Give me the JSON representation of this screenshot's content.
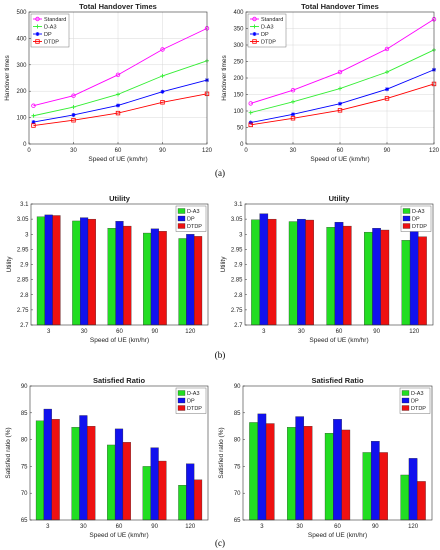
{
  "captions": [
    "(a)",
    "(b)",
    "(c)"
  ],
  "chart_data": [
    {
      "type": "line",
      "title": "Total Handover Times",
      "xlabel": "Speed of UE (km/hr)",
      "ylabel": "Handover times",
      "x": [
        3,
        30,
        60,
        90,
        120
      ],
      "xlim": [
        0,
        120
      ],
      "xticks": [
        "0",
        "30",
        "60",
        "90",
        "120"
      ],
      "ylim": [
        0,
        500
      ],
      "yticks": [
        "0",
        "100",
        "200",
        "300",
        "400",
        "500"
      ],
      "grid": true,
      "legend": "top-left",
      "series": [
        {
          "name": "Standard",
          "color": "#ff00ff",
          "marker": "circle",
          "values": [
            145,
            183,
            262,
            358,
            438
          ]
        },
        {
          "name": "D-A3",
          "color": "#33ee33",
          "marker": "plus",
          "values": [
            107,
            140,
            188,
            258,
            315
          ]
        },
        {
          "name": "DP",
          "color": "#0000ff",
          "marker": "star",
          "values": [
            83,
            110,
            146,
            198,
            242
          ]
        },
        {
          "name": "DTDP",
          "color": "#ff0000",
          "marker": "square",
          "values": [
            70,
            90,
            117,
            158,
            190
          ]
        }
      ]
    },
    {
      "type": "line",
      "title": "Total Handover Times",
      "xlabel": "Speed of UE (km/hr)",
      "ylabel": "Handover times",
      "x": [
        3,
        30,
        60,
        90,
        120
      ],
      "xlim": [
        0,
        120
      ],
      "xticks": [
        "0",
        "30",
        "60",
        "90",
        "120"
      ],
      "ylim": [
        0,
        400
      ],
      "yticks": [
        "0",
        "50",
        "100",
        "150",
        "200",
        "250",
        "300",
        "350",
        "400"
      ],
      "grid": true,
      "legend": "top-left",
      "series": [
        {
          "name": "Standard",
          "color": "#ff00ff",
          "marker": "circle",
          "values": [
            123,
            163,
            218,
            288,
            378
          ]
        },
        {
          "name": "D-A3",
          "color": "#33ee33",
          "marker": "plus",
          "values": [
            95,
            128,
            168,
            218,
            285
          ]
        },
        {
          "name": "DP",
          "color": "#0000ff",
          "marker": "star",
          "values": [
            65,
            90,
            122,
            166,
            225
          ]
        },
        {
          "name": "DTDP",
          "color": "#ff0000",
          "marker": "square",
          "values": [
            58,
            78,
            102,
            138,
            182
          ]
        }
      ]
    },
    {
      "type": "bar",
      "title": "Utility",
      "xlabel": "Speed of UE (km/hr)",
      "ylabel": "Utility",
      "categories": [
        "3",
        "30",
        "60",
        "90",
        "120"
      ],
      "ylim": [
        2.7,
        3.1
      ],
      "yticks": [
        "2.7",
        "2.75",
        "2.8",
        "2.85",
        "2.9",
        "2.95",
        "3",
        "3.05",
        "3.1"
      ],
      "legend": "top-right",
      "series": [
        {
          "name": "D-A3",
          "color": "#22dd22",
          "values": [
            3.058,
            3.044,
            3.02,
            3.004,
            2.986
          ]
        },
        {
          "name": "DP",
          "color": "#1111ee",
          "values": [
            3.064,
            3.055,
            3.043,
            3.018,
            3.0
          ]
        },
        {
          "name": "DTDP",
          "color": "#ee1111",
          "values": [
            3.062,
            3.05,
            3.027,
            3.01,
            2.993
          ]
        }
      ]
    },
    {
      "type": "bar",
      "title": "Utility",
      "xlabel": "Speed of UE (km/hr)",
      "ylabel": "Utility",
      "categories": [
        "3",
        "30",
        "60",
        "90",
        "120"
      ],
      "ylim": [
        2.7,
        3.1
      ],
      "yticks": [
        "2.7",
        "2.75",
        "2.8",
        "2.85",
        "2.9",
        "2.95",
        "3",
        "3.05",
        "3.1"
      ],
      "legend": "top-right",
      "series": [
        {
          "name": "D-A3",
          "color": "#22dd22",
          "values": [
            3.048,
            3.042,
            3.023,
            3.007,
            2.98
          ]
        },
        {
          "name": "DP",
          "color": "#1111ee",
          "values": [
            3.068,
            3.05,
            3.04,
            3.02,
            3.015
          ]
        },
        {
          "name": "DTDP",
          "color": "#ee1111",
          "values": [
            3.05,
            3.047,
            3.027,
            3.014,
            2.992
          ]
        }
      ]
    },
    {
      "type": "bar",
      "title": "Satisfied Ratio",
      "xlabel": "Speed of UE (km/hr)",
      "ylabel": "Satisfied ratio (%)",
      "categories": [
        "3",
        "30",
        "60",
        "90",
        "120"
      ],
      "ylim": [
        65,
        90
      ],
      "yticks": [
        "65",
        "70",
        "75",
        "80",
        "85",
        "90"
      ],
      "legend": "top-right",
      "series": [
        {
          "name": "D-A3",
          "color": "#22dd22",
          "values": [
            83.5,
            82.3,
            79.0,
            75.0,
            71.5
          ]
        },
        {
          "name": "DP",
          "color": "#1111ee",
          "values": [
            85.7,
            84.5,
            82.0,
            78.5,
            75.5
          ]
        },
        {
          "name": "DTDP",
          "color": "#ee1111",
          "values": [
            83.8,
            82.5,
            79.5,
            76.0,
            72.5
          ]
        }
      ]
    },
    {
      "type": "bar",
      "title": "Satisfied Ratio",
      "xlabel": "Speed of UE (km/hr)",
      "ylabel": "Satisfied ratio (%)",
      "categories": [
        "3",
        "30",
        "60",
        "90",
        "120"
      ],
      "ylim": [
        65,
        90
      ],
      "yticks": [
        "65",
        "70",
        "75",
        "80",
        "85",
        "90"
      ],
      "legend": "top-right",
      "series": [
        {
          "name": "D-A3",
          "color": "#22dd22",
          "values": [
            83.2,
            82.3,
            81.2,
            77.6,
            73.4
          ]
        },
        {
          "name": "DP",
          "color": "#1111ee",
          "values": [
            84.8,
            84.3,
            83.8,
            79.7,
            76.5
          ]
        },
        {
          "name": "DTDP",
          "color": "#ee1111",
          "values": [
            83.0,
            82.5,
            81.8,
            77.6,
            72.2
          ]
        }
      ]
    }
  ]
}
